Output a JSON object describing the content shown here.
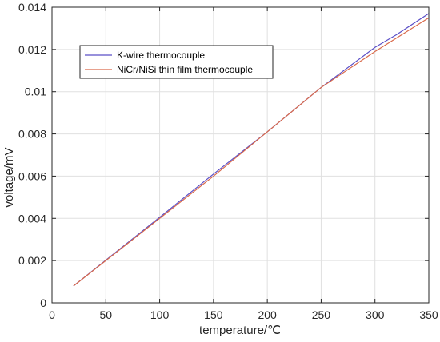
{
  "chart_data": {
    "type": "line",
    "title": "",
    "xlabel": "temperature/℃",
    "ylabel": "voltage/mV",
    "xlim": [
      0,
      350
    ],
    "ylim": [
      0,
      0.014
    ],
    "x_ticks": [
      "0",
      "50",
      "100",
      "150",
      "200",
      "250",
      "300",
      "350"
    ],
    "y_ticks": [
      "0",
      "0.002",
      "0.004",
      "0.006",
      "0.008",
      "0.01",
      "0.012",
      "0.014"
    ],
    "grid": true,
    "legend_position": "upper-left",
    "series": [
      {
        "name": "K-wire thermocouple",
        "color": "#5b4fc7",
        "x": [
          20,
          50,
          100,
          150,
          200,
          250,
          300,
          320,
          350
        ],
        "y": [
          0.0008,
          0.00202,
          0.00405,
          0.0061,
          0.0081,
          0.0102,
          0.0121,
          0.0127,
          0.0137
        ]
      },
      {
        "name": "NiCr/NiSi thin film thermocouple",
        "color": "#d9694a",
        "x": [
          20,
          50,
          100,
          150,
          200,
          250,
          300,
          350
        ],
        "y": [
          0.0008,
          0.002,
          0.004,
          0.006,
          0.0081,
          0.0102,
          0.0119,
          0.0135
        ]
      }
    ]
  }
}
